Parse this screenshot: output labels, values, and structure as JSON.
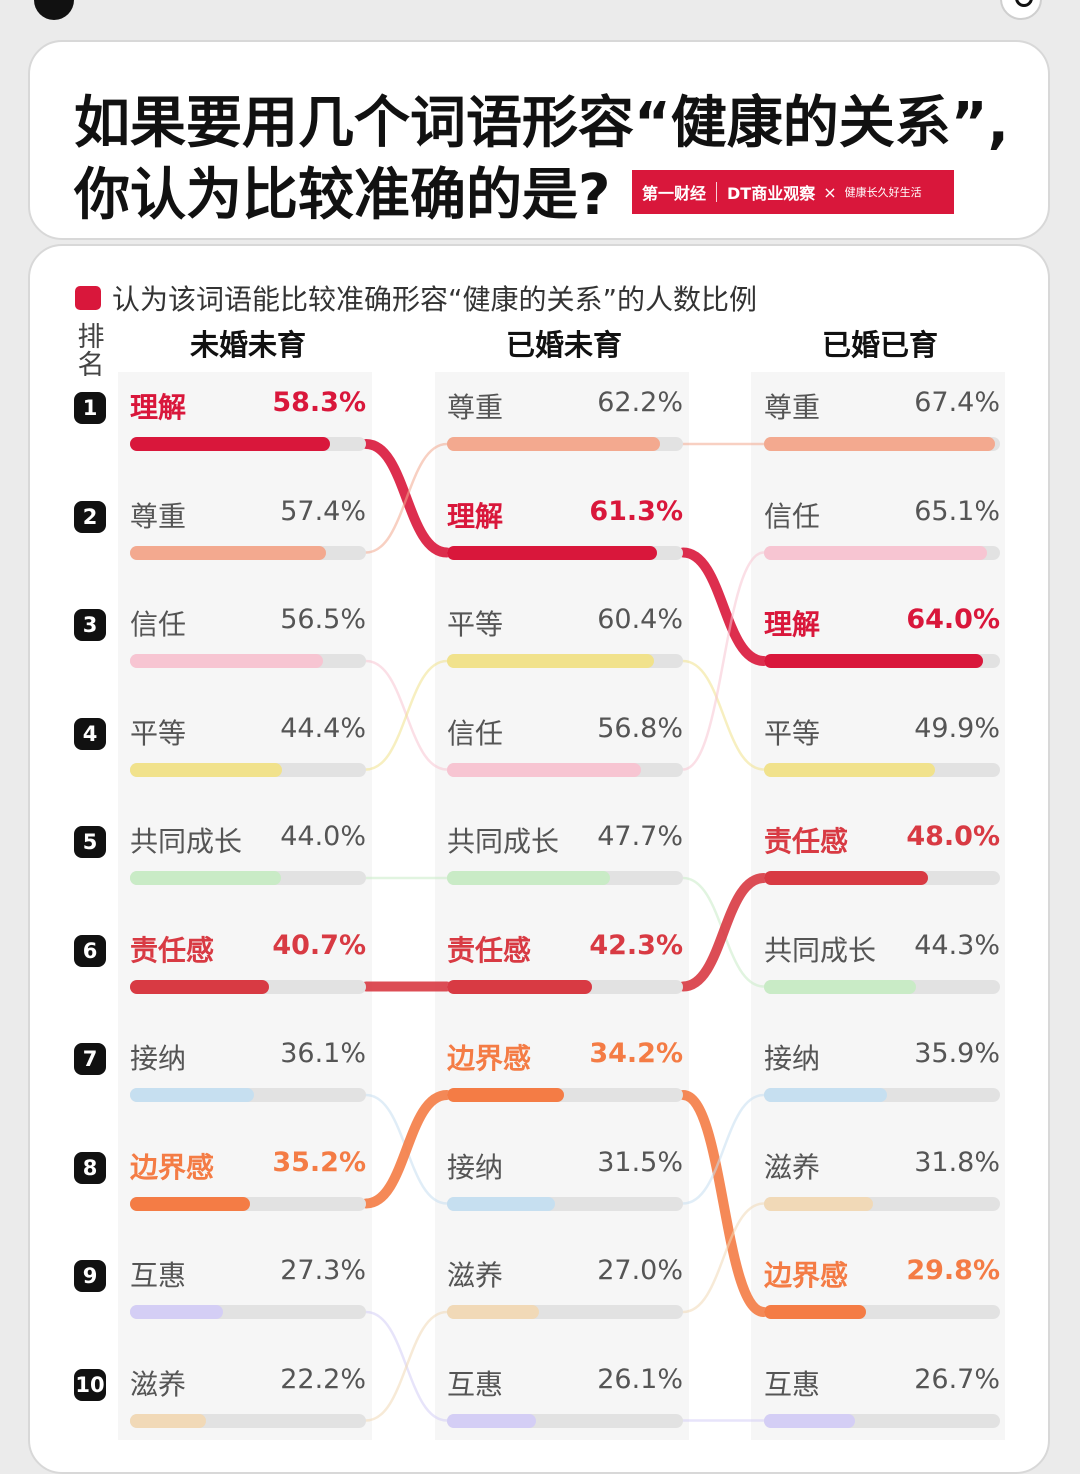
{
  "title": {
    "line1": "如果要用几个词语形容“健康的关系”,",
    "line2": "你认为比较准确的是?"
  },
  "brand": {
    "b1": "第一财经",
    "b2": "DT商业观察",
    "b3": "健康长久好生活"
  },
  "legend": {
    "text": "认为该词语能比较准确形容“健康的关系”的人数比例",
    "color": "#d9173b"
  },
  "rank_label": [
    "排",
    "名"
  ],
  "word_colors": {
    "理解": "#d9173b",
    "尊重": "#f3a98f",
    "信任": "#f7c5d2",
    "平等": "#f1e28c",
    "共同成长": "#c9ebc6",
    "责任感": "#d83a43",
    "接纳": "#c6dff0",
    "边界感": "#f47c45",
    "互惠": "#d4cef5",
    "滋养": "#f1d9b7"
  },
  "highlight_words": [
    "理解",
    "责任感",
    "边界感"
  ],
  "chart_data": {
    "type": "bar",
    "title": "如果要用几个词语形容“健康的关系”,你认为比较准确的是?",
    "ranks": [
      1,
      2,
      3,
      4,
      5,
      6,
      7,
      8,
      9,
      10
    ],
    "xlim": [
      0,
      100
    ],
    "unit": "%",
    "groups": [
      {
        "name": "未婚未育",
        "items": [
          {
            "label": "理解",
            "value": 58.3,
            "value_text": "58.3%"
          },
          {
            "label": "尊重",
            "value": 57.4,
            "value_text": "57.4%"
          },
          {
            "label": "信任",
            "value": 56.5,
            "value_text": "56.5%"
          },
          {
            "label": "平等",
            "value": 44.4,
            "value_text": "44.4%"
          },
          {
            "label": "共同成长",
            "value": 44.0,
            "value_text": "44.0%"
          },
          {
            "label": "责任感",
            "value": 40.7,
            "value_text": "40.7%"
          },
          {
            "label": "接纳",
            "value": 36.1,
            "value_text": "36.1%"
          },
          {
            "label": "边界感",
            "value": 35.2,
            "value_text": "35.2%"
          },
          {
            "label": "互惠",
            "value": 27.3,
            "value_text": "27.3%"
          },
          {
            "label": "滋养",
            "value": 22.2,
            "value_text": "22.2%"
          }
        ]
      },
      {
        "name": "已婚未育",
        "items": [
          {
            "label": "尊重",
            "value": 62.2,
            "value_text": "62.2%"
          },
          {
            "label": "理解",
            "value": 61.3,
            "value_text": "61.3%"
          },
          {
            "label": "平等",
            "value": 60.4,
            "value_text": "60.4%"
          },
          {
            "label": "信任",
            "value": 56.8,
            "value_text": "56.8%"
          },
          {
            "label": "共同成长",
            "value": 47.7,
            "value_text": "47.7%"
          },
          {
            "label": "责任感",
            "value": 42.3,
            "value_text": "42.3%"
          },
          {
            "label": "边界感",
            "value": 34.2,
            "value_text": "34.2%"
          },
          {
            "label": "接纳",
            "value": 31.5,
            "value_text": "31.5%"
          },
          {
            "label": "滋养",
            "value": 27.0,
            "value_text": "27.0%"
          },
          {
            "label": "互惠",
            "value": 26.1,
            "value_text": "26.1%"
          }
        ]
      },
      {
        "name": "已婚已育",
        "items": [
          {
            "label": "尊重",
            "value": 67.4,
            "value_text": "67.4%"
          },
          {
            "label": "信任",
            "value": 65.1,
            "value_text": "65.1%"
          },
          {
            "label": "理解",
            "value": 64.0,
            "value_text": "64.0%"
          },
          {
            "label": "平等",
            "value": 49.9,
            "value_text": "49.9%"
          },
          {
            "label": "责任感",
            "value": 48.0,
            "value_text": "48.0%"
          },
          {
            "label": "共同成长",
            "value": 44.3,
            "value_text": "44.3%"
          },
          {
            "label": "接纳",
            "value": 35.9,
            "value_text": "35.9%"
          },
          {
            "label": "滋养",
            "value": 31.8,
            "value_text": "31.8%"
          },
          {
            "label": "边界感",
            "value": 29.8,
            "value_text": "29.8%"
          },
          {
            "label": "互惠",
            "value": 26.7,
            "value_text": "26.7%"
          }
        ]
      }
    ]
  }
}
